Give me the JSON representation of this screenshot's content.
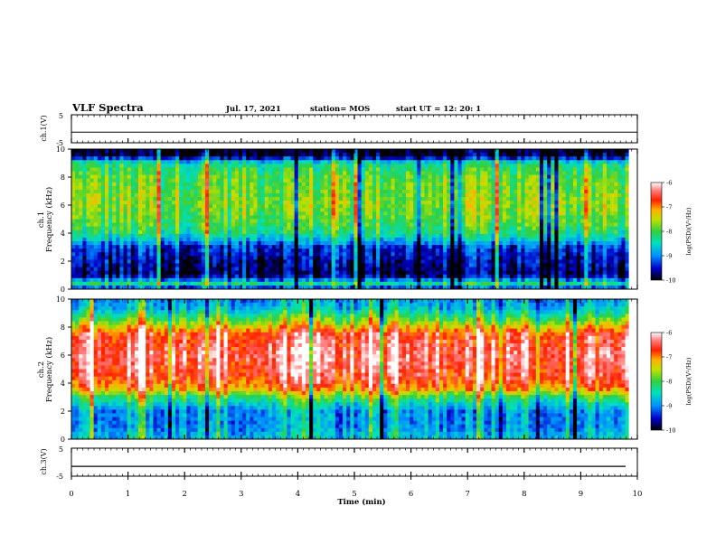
{
  "header": {
    "title": "VLF Spectra",
    "date": "Jul. 17, 2021",
    "station": "station= MOS",
    "start": "start UT =  12: 20: 1"
  },
  "chart_data": [
    {
      "type": "line",
      "name": "ch.1(V)",
      "ylabel": "ch.1(V)",
      "yticks": [
        "5",
        "-5"
      ],
      "ylim": [
        -5,
        5
      ],
      "xlim": [
        0,
        10
      ],
      "description_values": {
        "level": -1.2
      }
    },
    {
      "type": "heatmap",
      "ylabel_top": "ch.1",
      "ylabel": "Frequency (kHz)",
      "yticks": [
        "0",
        "2",
        "4",
        "6",
        "8",
        "10"
      ],
      "ylim": [
        0,
        10
      ],
      "xlim": [
        0,
        9.85
      ],
      "colorbar": {
        "label": "log(PSD)(V²/Hz)",
        "ticks": [
          "-6",
          "-7",
          "-8",
          "-9",
          "-10"
        ],
        "range": [
          -10,
          -6
        ]
      },
      "profile": [
        {
          "f": 0.0,
          "v": -9.5
        },
        {
          "f": 0.4,
          "v": -8.3
        },
        {
          "f": 1.0,
          "v": -9.8
        },
        {
          "f": 2.0,
          "v": -9.6
        },
        {
          "f": 3.0,
          "v": -9.3
        },
        {
          "f": 4.0,
          "v": -8.2
        },
        {
          "f": 5.0,
          "v": -7.9
        },
        {
          "f": 6.0,
          "v": -7.7
        },
        {
          "f": 7.0,
          "v": -7.8
        },
        {
          "f": 8.0,
          "v": -7.9
        },
        {
          "f": 9.0,
          "v": -8.3
        },
        {
          "f": 9.5,
          "v": -9.9
        },
        {
          "f": 10.0,
          "v": -10.0
        }
      ]
    },
    {
      "type": "heatmap",
      "ylabel_top": "ch.2",
      "ylabel": "Frequency (kHz)",
      "yticks": [
        "0",
        "2",
        "4",
        "6",
        "8",
        "10"
      ],
      "ylim": [
        0,
        10
      ],
      "xlim": [
        0,
        9.85
      ],
      "colorbar": {
        "label": "log(PSD)(V²/Hz)",
        "ticks": [
          "-6",
          "-7",
          "-8",
          "-9",
          "-10"
        ],
        "range": [
          -10,
          -6
        ]
      },
      "profile": [
        {
          "f": 0.0,
          "v": -8.6
        },
        {
          "f": 1.0,
          "v": -8.9
        },
        {
          "f": 2.0,
          "v": -8.9
        },
        {
          "f": 3.0,
          "v": -8.0
        },
        {
          "f": 3.6,
          "v": -7.0
        },
        {
          "f": 4.5,
          "v": -6.5
        },
        {
          "f": 6.0,
          "v": -6.3
        },
        {
          "f": 7.5,
          "v": -6.6
        },
        {
          "f": 8.0,
          "v": -7.2
        },
        {
          "f": 8.6,
          "v": -7.9
        },
        {
          "f": 9.3,
          "v": -8.6
        },
        {
          "f": 10.0,
          "v": -8.9
        }
      ]
    },
    {
      "type": "line",
      "name": "ch.3(V)",
      "ylabel": "ch.3(V)",
      "yticks": [
        "5",
        "-5"
      ],
      "ylim": [
        -5,
        5
      ],
      "xlim": [
        0,
        10
      ],
      "xlabel": "Time (min)",
      "xticks": [
        "0",
        "1",
        "2",
        "3",
        "4",
        "5",
        "6",
        "7",
        "8",
        "9",
        "10"
      ],
      "description_values": {
        "level": -1.5
      }
    }
  ]
}
